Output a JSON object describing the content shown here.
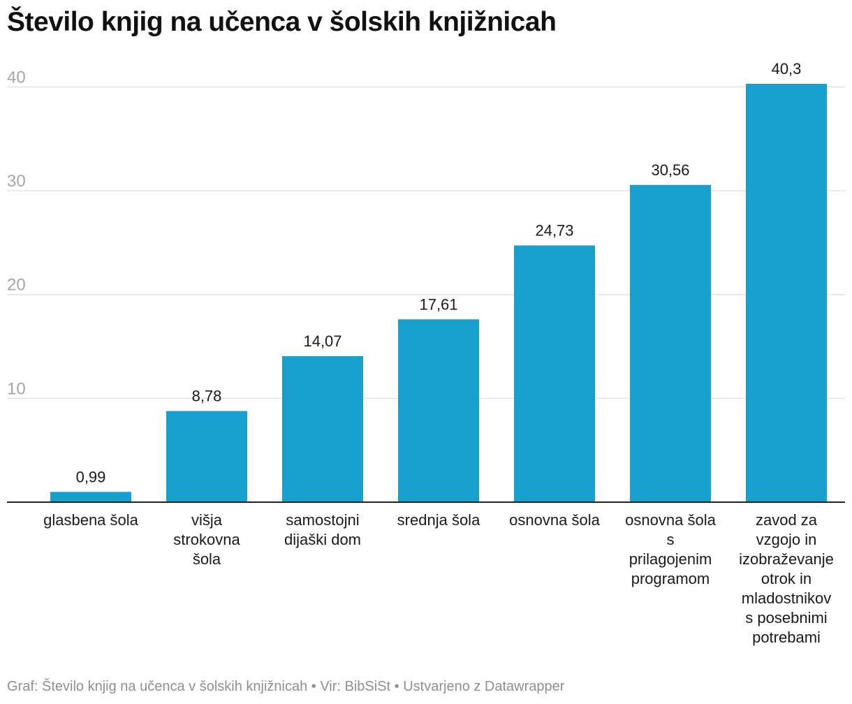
{
  "title": "Število knjig na učenca v šolskih knjižnicah",
  "footer": "Graf: Število knjig na učenca v šolskih knjižnicah • Vir: BibSiSt • Ustvarjeno z Datawrapper",
  "colors": {
    "bar": "#199fcc",
    "grid": "#e2e2e2",
    "axis": "#222222",
    "tick_text": "#a6a6a6",
    "footer_text": "#8f8f8f"
  },
  "chart_data": {
    "type": "bar",
    "title": "Število knjig na učenca v šolskih knjižnicah",
    "xlabel": "",
    "ylabel": "",
    "ylim": [
      0,
      40.3
    ],
    "yticks": [
      10,
      20,
      30,
      40
    ],
    "ytick_labels": [
      "10",
      "20",
      "30",
      "40"
    ],
    "grid": true,
    "legend": "none",
    "categories": [
      [
        "glasbena šola"
      ],
      [
        "višja",
        "strokovna",
        "šola"
      ],
      [
        "samostojni",
        "dijaški dom"
      ],
      [
        "srednja šola"
      ],
      [
        "osnovna šola"
      ],
      [
        "osnovna šola",
        "s",
        "prilagojenim",
        "programom"
      ],
      [
        "zavod za",
        "vzgojo in",
        "izobraževanje",
        "otrok in",
        "mladostnikov",
        "s posebnimi",
        "potrebami"
      ]
    ],
    "values": [
      0.99,
      8.78,
      14.07,
      17.61,
      24.73,
      30.56,
      40.3
    ],
    "value_labels": [
      "0,99",
      "8,78",
      "14,07",
      "17,61",
      "24,73",
      "30,56",
      "40,3"
    ]
  }
}
